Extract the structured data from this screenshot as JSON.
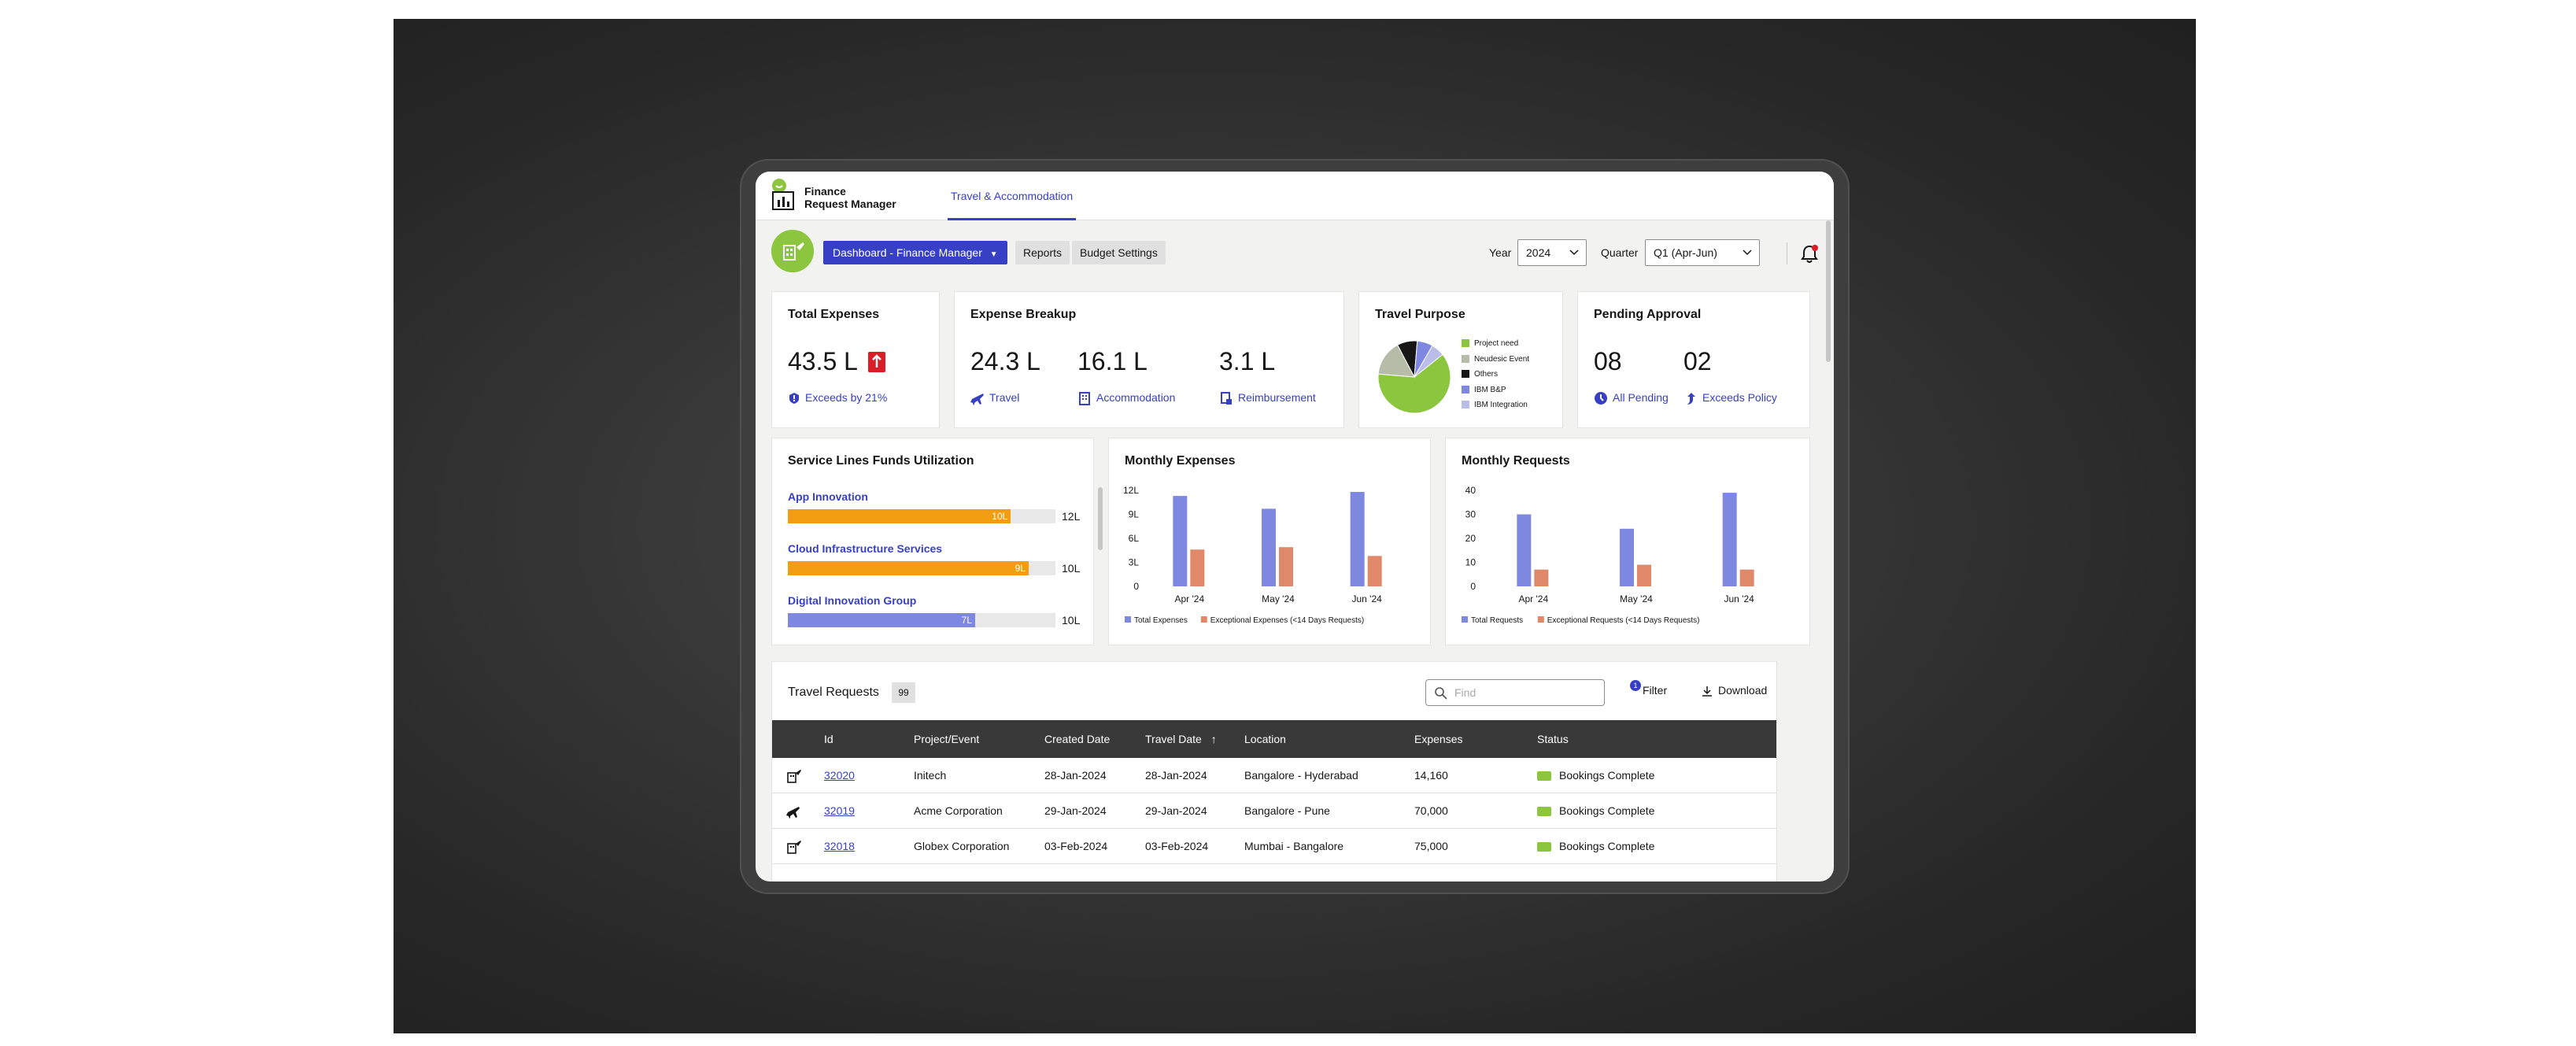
{
  "app": {
    "name_line1": "Finance",
    "name_line2": "Request Manager",
    "active_tab": "Travel & Accommodation"
  },
  "toolbar": {
    "dashboard_label": "Dashboard - Finance Manager",
    "reports_label": "Reports",
    "budget_label": "Budget Settings",
    "year_label": "Year",
    "year_value": "2024",
    "quarter_label": "Quarter",
    "quarter_value": "Q1 (Apr-Jun)",
    "has_notification": true
  },
  "total_expenses": {
    "title": "Total Expenses",
    "value": "43.5 L",
    "note": "Exceeds by 21%"
  },
  "expense_breakup": {
    "title": "Expense Breakup",
    "items": [
      {
        "value": "24.3 L",
        "label": "Travel",
        "icon": "plane-icon"
      },
      {
        "value": "16.1 L",
        "label": "Accommodation",
        "icon": "building-icon"
      },
      {
        "value": "3.1 L",
        "label": "Reimbursement",
        "icon": "receipt-icon"
      }
    ]
  },
  "travel_purpose": {
    "title": "Travel Purpose",
    "legend": [
      {
        "label": "Project need",
        "color": "#8cc63f"
      },
      {
        "label": "Neudesic Event",
        "color": "#b5bca8"
      },
      {
        "label": "Others",
        "color": "#161616"
      },
      {
        "label": "IBM B&P",
        "color": "#7e88e0"
      },
      {
        "label": "IBM Integration",
        "color": "#b9bde8"
      }
    ]
  },
  "pending_approval": {
    "title": "Pending Approval",
    "items": [
      {
        "value": "08",
        "label": "All Pending",
        "icon": "clock-icon"
      },
      {
        "value": "02",
        "label": "Exceeds Policy",
        "icon": "up-arrow-icon"
      }
    ]
  },
  "service_lines": {
    "title": "Service Lines Funds Utilization",
    "items": [
      {
        "name": "App Innovation",
        "used": 10,
        "max": 12,
        "used_label": "10L",
        "max_label": "12L",
        "color": "#f29c11"
      },
      {
        "name": "Cloud Infrastructure Services",
        "used": 9,
        "max": 10,
        "used_label": "9L",
        "max_label": "10L",
        "color": "#f29c11"
      },
      {
        "name": "Digital Innovation Group",
        "used": 7,
        "max": 10,
        "used_label": "7L",
        "max_label": "10L",
        "color": "#7e88e0"
      }
    ]
  },
  "chart_data": [
    {
      "type": "pie",
      "title": "Travel Purpose",
      "categories": [
        "Project need",
        "Neudesic Event",
        "Others",
        "IBM B&P",
        "IBM Integration"
      ],
      "values": [
        62,
        16,
        9,
        7,
        6
      ],
      "colors": [
        "#8cc63f",
        "#b5bca8",
        "#161616",
        "#7e88e0",
        "#b9bde8"
      ]
    },
    {
      "type": "bar",
      "title": "Monthly Expenses",
      "categories": [
        "Apr '24",
        "May '24",
        "Jun '24"
      ],
      "y_ticks": [
        "0",
        "3L",
        "6L",
        "9L",
        "12L"
      ],
      "ylim": [
        0,
        12
      ],
      "series": [
        {
          "name": "Total Expenses",
          "color": "#7e88e0",
          "values": [
            11.3,
            9.7,
            11.8
          ]
        },
        {
          "name": "Exceptional Expenses (<14 Days Requests)",
          "color": "#e0896a",
          "values": [
            4.6,
            4.9,
            3.8
          ]
        }
      ]
    },
    {
      "type": "bar",
      "title": "Monthly Requests",
      "categories": [
        "Apr '24",
        "May '24",
        "Jun '24"
      ],
      "y_ticks": [
        "0",
        "10",
        "20",
        "30",
        "40"
      ],
      "ylim": [
        0,
        40
      ],
      "series": [
        {
          "name": "Total Requests",
          "color": "#7e88e0",
          "values": [
            30,
            24,
            39
          ]
        },
        {
          "name": "Exceptional Requests (<14 Days Requests)",
          "color": "#e0896a",
          "values": [
            7,
            9,
            7
          ]
        }
      ]
    }
  ],
  "travel_requests": {
    "title": "Travel Requests",
    "count": "99",
    "find_placeholder": "Find",
    "filter_label": "Filter",
    "filter_count": "1",
    "download_label": "Download",
    "columns": [
      "Id",
      "Project/Event",
      "Created Date",
      "Travel Date",
      "Location",
      "Expenses",
      "Status"
    ],
    "rows": [
      {
        "type": "travel-accommodation-icon",
        "id": "32020",
        "project": "Initech",
        "created": "28-Jan-2024",
        "travel": "28-Jan-2024",
        "location": "Bangalore - Hyderabad",
        "expenses": "14,160",
        "status": "Bookings Complete"
      },
      {
        "type": "plane-icon",
        "id": "32019",
        "project": "Acme Corporation",
        "created": "29-Jan-2024",
        "travel": "29-Jan-2024",
        "location": "Bangalore - Pune",
        "expenses": "70,000",
        "status": "Bookings Complete"
      },
      {
        "type": "travel-accommodation-icon",
        "id": "32018",
        "project": "Globex Corporation",
        "created": "03-Feb-2024",
        "travel": "03-Feb-2024",
        "location": "Mumbai - Bangalore",
        "expenses": "75,000",
        "status": "Bookings Complete"
      }
    ]
  }
}
